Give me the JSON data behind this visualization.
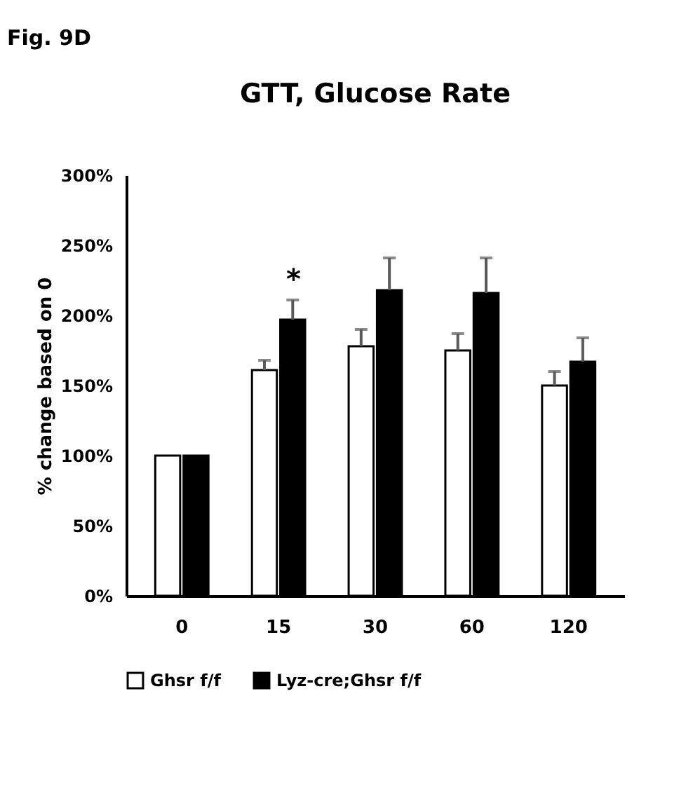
{
  "chart_data": {
    "type": "bar",
    "title": "GTT, Glucose Rate",
    "ylabel": "% change based on 0",
    "categories": [
      "0",
      "15",
      "30",
      "60",
      "120"
    ],
    "series": [
      {
        "name": "Ghsr f/f",
        "color": "#ffffff",
        "values": [
          100,
          161,
          178,
          175,
          150
        ],
        "errors": [
          null,
          [
            161,
            168
          ],
          [
            178,
            190
          ],
          [
            175,
            187
          ],
          [
            150,
            160
          ]
        ]
      },
      {
        "name": "Lyz-cre;Ghsr f/f",
        "color": "#000000",
        "values": [
          100,
          197,
          218,
          216,
          167
        ],
        "errors": [
          null,
          [
            197,
            211
          ],
          [
            218,
            241
          ],
          [
            216,
            241
          ],
          [
            167,
            184
          ]
        ]
      }
    ],
    "ylim": [
      0,
      300
    ],
    "yticks": [
      {
        "value": 0,
        "label": "0%"
      },
      {
        "value": 50,
        "label": "50%"
      },
      {
        "value": 100,
        "label": "100%"
      },
      {
        "value": 150,
        "label": "150%"
      },
      {
        "value": 200,
        "label": "200%"
      },
      {
        "value": 250,
        "label": "250%"
      },
      {
        "value": 300,
        "label": "300%"
      }
    ],
    "annotations": [
      "Fig. 9D",
      "*"
    ],
    "legend": "bottom",
    "grid": false
  }
}
